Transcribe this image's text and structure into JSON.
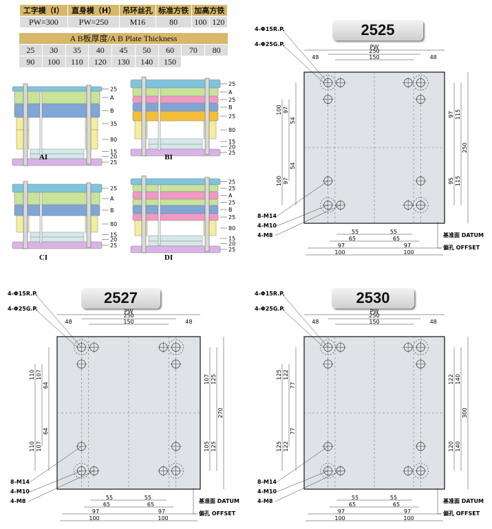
{
  "spec": {
    "headers": [
      "工字模（I）",
      "直身模（H）",
      "吊环丝孔",
      "标准方铁",
      "加高方铁"
    ],
    "values": [
      "PW=300",
      "PW=250",
      "M16",
      "80",
      "100",
      "120"
    ]
  },
  "thickness": {
    "title": "A B板厚度/A B Plate Thickness",
    "values": [
      "25",
      "30",
      "35",
      "40",
      "45",
      "50",
      "60",
      "70",
      "80",
      "90",
      "100",
      "110",
      "120",
      "130",
      "140",
      "150"
    ]
  },
  "stacks": [
    {
      "label": "AI",
      "layers": [
        "25",
        "A",
        "B",
        "35",
        "80",
        "15",
        "20",
        "25"
      ]
    },
    {
      "label": "BI",
      "layers": [
        "25",
        "A",
        "25",
        "B",
        "25",
        "80",
        "15",
        "20",
        "25"
      ]
    },
    {
      "label": "CI",
      "layers": [
        "25",
        "A",
        "B",
        "80",
        "15",
        "20",
        "25"
      ]
    },
    {
      "label": "DI",
      "layers": [
        "25",
        "25",
        "A",
        "25",
        "B",
        "25",
        "80",
        "15",
        "20",
        "25"
      ]
    }
  ],
  "common": {
    "rp": "4-Φ15R.P.",
    "gp": "4-Φ25G.P.",
    "pw": "PW",
    "m14": "8-M14",
    "m10": "4-M10",
    "m8": "4-M8",
    "datum": "基准面 DATUM",
    "offset": "偏孔 OFFSET",
    "top": [
      "250",
      "48",
      "150",
      "48"
    ],
    "bottom": [
      "55",
      "55",
      "65",
      "65",
      "97",
      "97",
      "100",
      "100"
    ]
  },
  "plates": [
    {
      "tag": "2525",
      "h": "250",
      "left": [
        "100",
        "97",
        "54",
        "100",
        "97",
        "54"
      ],
      "right": [
        "97",
        "115",
        "95",
        "115"
      ]
    },
    {
      "tag": "2527",
      "h": "270",
      "left": [
        "110",
        "107",
        "64",
        "110",
        "107",
        "64"
      ],
      "right": [
        "107",
        "125",
        "105",
        "125"
      ]
    },
    {
      "tag": "2530",
      "h": "300",
      "left": [
        "125",
        "122",
        "77",
        "125",
        "122",
        "77"
      ],
      "right": [
        "122",
        "140",
        "120",
        "140"
      ]
    }
  ],
  "colors": {
    "top": "#7fc4dc",
    "a": "#c8e39a",
    "b": "#7fa6d6",
    "spacer": "#f4ee9a",
    "clamp": "#d9b3e6",
    "pink": "#f199c4",
    "orange": "#f3bf3a",
    "plate": "#dfe3e8"
  }
}
